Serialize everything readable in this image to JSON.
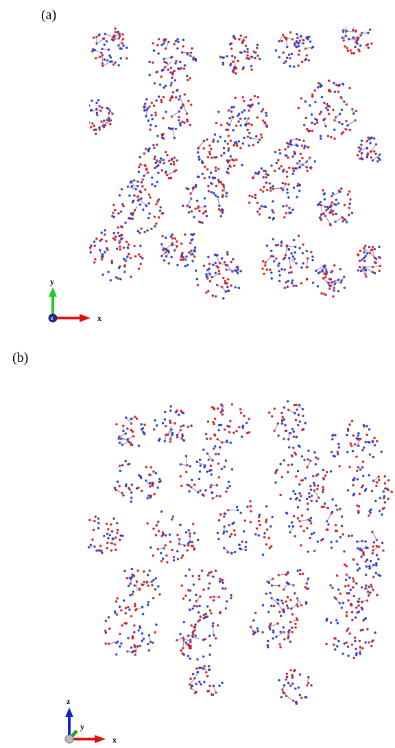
{
  "panels": [
    {
      "label": "(a)",
      "axes": {
        "vertical": "y",
        "horizontal": "x",
        "depth": "z"
      }
    },
    {
      "label": "(b)",
      "axes": {
        "vertical": "z",
        "depth": "y",
        "horizontal": "x"
      }
    }
  ]
}
